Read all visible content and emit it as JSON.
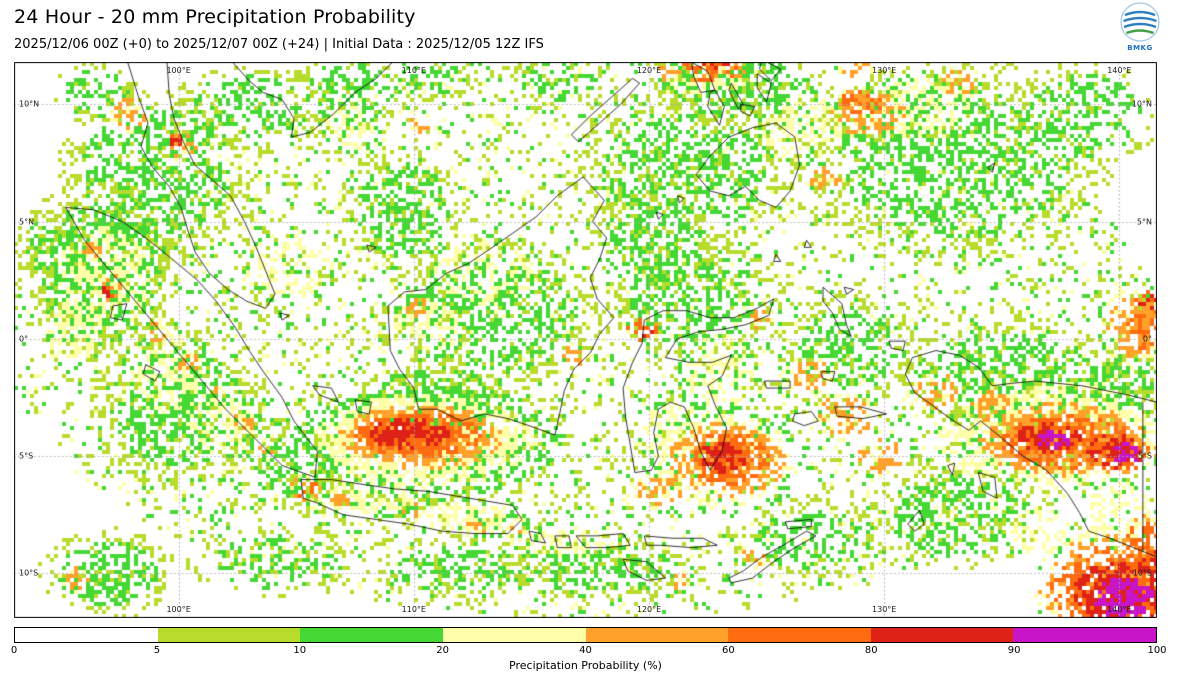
{
  "header": {
    "title": "24 Hour - 20 mm Precipitation Probability",
    "subtitle": "2025/12/06 00Z (+0) to 2025/12/07 00Z (+24) | Initial Data : 2025/12/05 12Z IFS",
    "logo_text": "BMKG"
  },
  "map": {
    "extent": {
      "lon_min": 93.0,
      "lon_max": 141.6,
      "lat_min": -11.9,
      "lat_max": 11.8
    },
    "x_ticks": [
      {
        "lon": 100,
        "label": "100°E"
      },
      {
        "lon": 110,
        "label": "110°E"
      },
      {
        "lon": 120,
        "label": "120°E"
      },
      {
        "lon": 130,
        "label": "130°E"
      },
      {
        "lon": 140,
        "label": "140°E"
      }
    ],
    "y_ticks": [
      {
        "lat": 10,
        "label": "10°N"
      },
      {
        "lat": 5,
        "label": "5°N"
      },
      {
        "lat": 0,
        "label": "0°"
      },
      {
        "lat": -5,
        "label": "5°S"
      },
      {
        "lat": -10,
        "label": "10°S"
      }
    ]
  },
  "colorbar": {
    "label": "Precipitation Probability (%)",
    "tick_labels": [
      "0",
      "5",
      "10",
      "20",
      "40",
      "60",
      "80",
      "90",
      "100"
    ],
    "segments": [
      {
        "from": 0,
        "to": 5,
        "color": "#ffffff"
      },
      {
        "from": 5,
        "to": 10,
        "color": "#b8dc2c"
      },
      {
        "from": 10,
        "to": 20,
        "color": "#45d835"
      },
      {
        "from": 20,
        "to": 40,
        "color": "#ffffaa"
      },
      {
        "from": 40,
        "to": 60,
        "color": "#ffa12b"
      },
      {
        "from": 60,
        "to": 80,
        "color": "#ff6b10"
      },
      {
        "from": 80,
        "to": 90,
        "color": "#de2218"
      },
      {
        "from": 90,
        "to": 100,
        "color": "#c715c7"
      }
    ]
  },
  "precipitation": {
    "regions": [
      [
        117.3,
        0,
        24.6,
        12,
        0,
        0.09,
        1
      ],
      [
        117.3,
        0,
        24.6,
        12,
        1,
        0.05,
        1
      ],
      [
        117.3,
        0,
        24.6,
        12,
        2,
        0.04,
        1
      ],
      [
        99,
        7,
        4.5,
        4,
        1,
        0.5,
        0
      ],
      [
        96.5,
        3,
        3.5,
        4,
        1,
        0.55,
        0
      ],
      [
        94.2,
        4,
        1.2,
        1.5,
        1,
        0.45,
        0
      ],
      [
        96.5,
        10.5,
        2,
        1.5,
        1,
        0.4,
        0
      ],
      [
        103,
        9.8,
        3.5,
        2.2,
        1,
        0.4,
        0
      ],
      [
        107.3,
        10.5,
        2.8,
        1.8,
        1,
        0.45,
        0
      ],
      [
        110.7,
        11.2,
        2.2,
        1.2,
        1,
        0.4,
        0
      ],
      [
        100,
        -3,
        4,
        3.5,
        1,
        0.5,
        0
      ],
      [
        104.5,
        -5.3,
        2.5,
        2,
        1,
        0.5,
        0
      ],
      [
        109.5,
        5.5,
        2.8,
        2.8,
        1,
        0.5,
        0
      ],
      [
        113.5,
        1,
        5,
        3.5,
        1,
        0.4,
        0
      ],
      [
        111,
        -2.5,
        4,
        1.8,
        1,
        0.45,
        0
      ],
      [
        121.5,
        7,
        5,
        4,
        1,
        0.45,
        0
      ],
      [
        124,
        10.8,
        4,
        2,
        1,
        0.5,
        0
      ],
      [
        133,
        7.5,
        7,
        4.5,
        1,
        0.45,
        0
      ],
      [
        138.5,
        9.5,
        3.5,
        2.5,
        1,
        0.4,
        0
      ],
      [
        122,
        1.8,
        4,
        3,
        1,
        0.4,
        0
      ],
      [
        128.5,
        -0.5,
        3,
        2.5,
        1,
        0.4,
        0
      ],
      [
        135.5,
        -1.5,
        5,
        2.5,
        1,
        0.45,
        0
      ],
      [
        140,
        -2,
        2,
        1.8,
        1,
        0.5,
        0
      ],
      [
        97,
        -10,
        3,
        2,
        1,
        0.6,
        0
      ],
      [
        104,
        -9.5,
        4,
        1.6,
        1,
        0.3,
        0
      ],
      [
        112,
        -9.8,
        4,
        1.4,
        1,
        0.35,
        0
      ],
      [
        118,
        -9.8,
        4.5,
        1.5,
        1,
        0.4,
        0
      ],
      [
        127,
        -8.6,
        3.5,
        1.8,
        1,
        0.4,
        0
      ],
      [
        133,
        -7.5,
        4,
        2.5,
        1,
        0.45,
        0
      ],
      [
        120,
        4,
        3,
        2.5,
        1,
        0.35,
        0
      ],
      [
        116,
        11,
        2.5,
        1.3,
        1,
        0.3,
        0
      ],
      [
        96.8,
        2.5,
        2.8,
        3.2,
        2,
        0.5,
        0
      ],
      [
        99.5,
        -1.5,
        2.2,
        2.5,
        2,
        0.45,
        0
      ],
      [
        101.8,
        -3.5,
        2,
        2,
        2,
        0.45,
        0
      ],
      [
        104.8,
        3.2,
        2.5,
        2,
        2,
        0.35,
        0
      ],
      [
        113,
        2.8,
        3,
        2,
        2,
        0.35,
        0
      ],
      [
        110.5,
        0.5,
        2,
        1.7,
        2,
        0.4,
        0
      ],
      [
        123,
        -1.5,
        2,
        2.5,
        2,
        0.4,
        0
      ],
      [
        121,
        -4,
        1.8,
        1.8,
        2,
        0.45,
        0
      ],
      [
        126.5,
        9,
        2.5,
        2,
        2,
        0.4,
        0
      ],
      [
        122.5,
        11.2,
        2.5,
        1.2,
        2,
        0.5,
        0
      ],
      [
        131.5,
        9.8,
        3,
        1.8,
        2,
        0.45,
        0
      ],
      [
        137,
        -2.8,
        4.5,
        1.6,
        2,
        0.5,
        0
      ],
      [
        133.8,
        -4.6,
        2.4,
        1.8,
        2,
        0.45,
        0
      ],
      [
        108,
        -6.8,
        3,
        1,
        2,
        0.5,
        0
      ],
      [
        112.5,
        -7.6,
        3.5,
        1,
        2,
        0.5,
        0
      ],
      [
        116.5,
        -8.7,
        3,
        1,
        2,
        0.45,
        0
      ],
      [
        140,
        -7.5,
        2,
        2,
        2,
        0.5,
        0
      ],
      [
        107.3,
        9,
        1.6,
        1.3,
        2,
        0.4,
        0
      ],
      [
        136.5,
        -8.2,
        2,
        1.4,
        2,
        0.4,
        0
      ],
      [
        95.5,
        0.3,
        1.5,
        2,
        2,
        0.45,
        0
      ],
      [
        110.5,
        -4.3,
        6.5,
        2.8,
        2,
        0.6,
        0
      ],
      [
        110.3,
        -4.2,
        5,
        2,
        3,
        0.65,
        0
      ],
      [
        110.2,
        -4.1,
        3.8,
        1.4,
        4,
        0.78,
        0
      ],
      [
        109.8,
        -4.05,
        2.4,
        0.9,
        5,
        0.9,
        0
      ],
      [
        123.3,
        -5.2,
        3.5,
        2.3,
        3,
        0.6,
        0
      ],
      [
        123.4,
        -5.1,
        2.4,
        1.6,
        4,
        0.72,
        0
      ],
      [
        123.2,
        -5,
        1.4,
        1,
        5,
        0.85,
        0
      ],
      [
        120.5,
        -6.5,
        1.5,
        1,
        3,
        0.5,
        0
      ],
      [
        128.3,
        -3.3,
        1.8,
        1.2,
        3,
        0.5,
        0
      ],
      [
        129.8,
        -5,
        1.5,
        1,
        3,
        0.45,
        0
      ],
      [
        126.8,
        -1.5,
        1.2,
        1,
        3,
        0.4,
        0
      ],
      [
        137.5,
        -4.3,
        5,
        2.2,
        3,
        0.6,
        0
      ],
      [
        137.8,
        -4.4,
        4,
        1.6,
        4,
        0.72,
        0
      ],
      [
        137,
        -4.2,
        2,
        0.9,
        5,
        0.85,
        0
      ],
      [
        139.8,
        -4.8,
        1.8,
        1,
        5,
        0.8,
        0
      ],
      [
        137.2,
        -4.3,
        1,
        0.55,
        6,
        0.85,
        0
      ],
      [
        140.3,
        -4.9,
        0.9,
        0.6,
        6,
        0.8,
        0
      ],
      [
        132.3,
        -2.3,
        1.5,
        1.1,
        3,
        0.5,
        0
      ],
      [
        134.5,
        -2.9,
        1.3,
        1,
        3,
        0.45,
        0
      ],
      [
        140.6,
        0.5,
        1.6,
        2,
        3,
        0.55,
        0
      ],
      [
        140.9,
        0.3,
        1,
        1.3,
        4,
        0.62,
        0
      ],
      [
        141.2,
        1.5,
        0.6,
        0.6,
        5,
        0.6,
        0
      ],
      [
        139.6,
        -10.6,
        3.5,
        2.5,
        4,
        0.68,
        0
      ],
      [
        139.9,
        -10.8,
        2.6,
        1.8,
        5,
        0.8,
        0
      ],
      [
        140.2,
        -11.1,
        1.8,
        1.3,
        6,
        0.88,
        0
      ],
      [
        141,
        -8.8,
        1,
        1.5,
        4,
        0.6,
        0
      ],
      [
        141.3,
        -9.6,
        0.7,
        1,
        5,
        0.65,
        0
      ],
      [
        122.6,
        11.6,
        1.8,
        0.9,
        4,
        0.6,
        0
      ],
      [
        122.7,
        11.9,
        1.1,
        0.6,
        5,
        0.78,
        0
      ],
      [
        120.8,
        11.5,
        1,
        0.7,
        3,
        0.5,
        0
      ],
      [
        129.3,
        9.6,
        2.3,
        1.4,
        3,
        0.55,
        0
      ],
      [
        129,
        10,
        1.3,
        0.8,
        4,
        0.6,
        0
      ],
      [
        133.2,
        10.9,
        1.2,
        0.8,
        3,
        0.5,
        0
      ],
      [
        128.8,
        11.6,
        0.9,
        0.6,
        3,
        0.5,
        0
      ],
      [
        127.5,
        6.8,
        0.9,
        0.7,
        3,
        0.4,
        0
      ],
      [
        97.2,
        2.3,
        0.7,
        0.7,
        3,
        0.55,
        0
      ],
      [
        96.3,
        3.8,
        0.6,
        0.6,
        3,
        0.5,
        0
      ],
      [
        99.1,
        0.3,
        0.6,
        0.6,
        3,
        0.5,
        0
      ],
      [
        100.4,
        -1,
        0.7,
        0.6,
        3,
        0.5,
        0
      ],
      [
        101.5,
        -2.4,
        0.6,
        0.5,
        3,
        0.5,
        0
      ],
      [
        102.7,
        -3.6,
        0.7,
        0.6,
        3,
        0.5,
        0
      ],
      [
        103.8,
        -4.8,
        0.6,
        0.5,
        3,
        0.45,
        0
      ],
      [
        97,
        2,
        0.35,
        0.35,
        5,
        0.7,
        0
      ],
      [
        106.8,
        -6.9,
        0.8,
        0.5,
        3,
        0.55,
        0
      ],
      [
        105.4,
        -6.4,
        0.8,
        0.6,
        4,
        0.5,
        0
      ],
      [
        109.9,
        -7.3,
        0.7,
        0.4,
        3,
        0.5,
        0
      ],
      [
        112.8,
        -7.9,
        0.8,
        0.5,
        3,
        0.5,
        0
      ],
      [
        114.4,
        -8.3,
        0.6,
        0.4,
        3,
        0.45,
        0
      ],
      [
        116.9,
        -0.6,
        0.8,
        0.7,
        3,
        0.5,
        0
      ],
      [
        110.2,
        1.3,
        0.7,
        0.6,
        3,
        0.5,
        0
      ],
      [
        119.7,
        0.4,
        0.9,
        0.8,
        4,
        0.55,
        0
      ],
      [
        119.9,
        0.2,
        0.5,
        0.4,
        5,
        0.65,
        0
      ],
      [
        100.2,
        8.2,
        0.8,
        0.8,
        3,
        0.5,
        0
      ],
      [
        99.9,
        8.4,
        0.4,
        0.4,
        5,
        0.6,
        0
      ],
      [
        98,
        9.6,
        1,
        1,
        3,
        0.5,
        0
      ],
      [
        95.6,
        -10.2,
        0.8,
        0.7,
        3,
        0.55,
        0
      ],
      [
        124.5,
        -9.3,
        0.8,
        0.6,
        3,
        0.45,
        0
      ],
      [
        121.5,
        -10.3,
        0.8,
        0.6,
        3,
        0.4,
        0
      ],
      [
        124.8,
        0.8,
        1,
        0.6,
        3,
        0.4,
        0
      ],
      [
        110.2,
        9.2,
        0.7,
        0.6,
        3,
        0.45,
        0
      ]
    ]
  }
}
